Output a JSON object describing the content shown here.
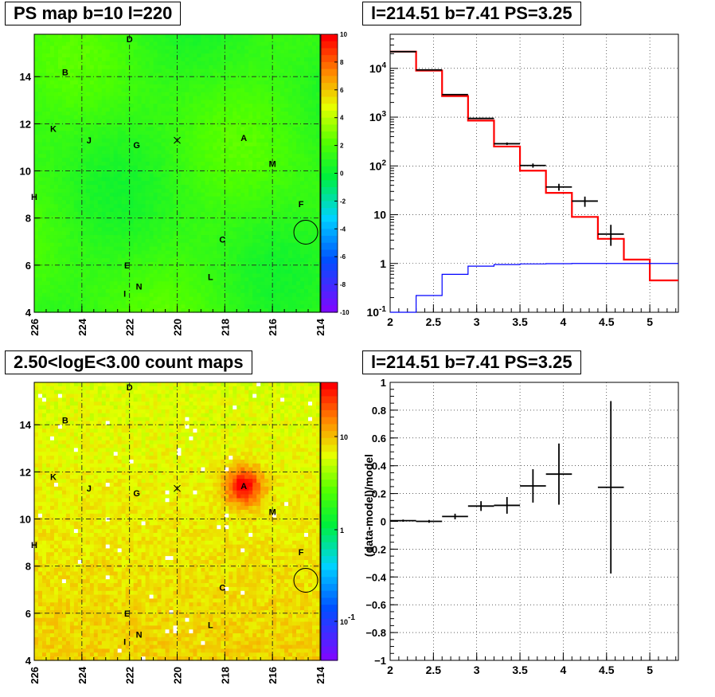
{
  "panels": {
    "top_left_title": "PS map b=10 l=220",
    "top_right_title": "l=214.51 b=7.41 PS=3.25",
    "bottom_left_title": "2.50<logE<3.00 count maps",
    "bottom_right_title": "l=214.51 b=7.41 PS=3.25"
  },
  "colors": {
    "accent_black": "#000000",
    "model_red": "#ff0000",
    "model_blue": "#0000ff"
  },
  "chart_data": [
    {
      "type": "heatmap",
      "title": "PS map b=10 l=220",
      "x_axis": {
        "ticks": [
          "226",
          "224",
          "222",
          "220",
          "218",
          "216",
          "214"
        ],
        "range": [
          226,
          214
        ]
      },
      "y_axis": {
        "ticks": [
          "4",
          "6",
          "8",
          "10",
          "12",
          "14"
        ],
        "range": [
          4,
          15.8
        ]
      },
      "colorbar": {
        "ticks": [
          "-10",
          "-8",
          "-6",
          "-4",
          "-2",
          "0",
          "2",
          "4",
          "6",
          "8",
          "10"
        ],
        "range": [
          -10,
          10
        ]
      },
      "grid": true,
      "source_labels": [
        {
          "name": "D",
          "l": 222.0,
          "b": 15.6
        },
        {
          "name": "B",
          "l": 224.7,
          "b": 14.2
        },
        {
          "name": "K",
          "l": 225.2,
          "b": 11.8
        },
        {
          "name": "J",
          "l": 223.7,
          "b": 11.3
        },
        {
          "name": "G",
          "l": 221.7,
          "b": 11.1
        },
        {
          "name": "A",
          "l": 217.2,
          "b": 11.4
        },
        {
          "name": "M",
          "l": 216.0,
          "b": 10.3
        },
        {
          "name": "H",
          "l": 226.0,
          "b": 8.9
        },
        {
          "name": "F",
          "l": 214.8,
          "b": 8.6
        },
        {
          "name": "C",
          "l": 218.1,
          "b": 7.1
        },
        {
          "name": "E",
          "l": 222.1,
          "b": 6.0
        },
        {
          "name": "L",
          "l": 218.6,
          "b": 5.5
        },
        {
          "name": "N",
          "l": 221.6,
          "b": 5.1
        },
        {
          "name": "I",
          "l": 222.2,
          "b": 4.8
        }
      ],
      "center_mark": {
        "l": 220.0,
        "b": 11.3
      },
      "circle": {
        "l": 214.6,
        "b": 7.4
      }
    },
    {
      "type": "line",
      "title": "l=214.51 b=7.41 PS=3.25",
      "xlim": [
        2,
        5.33
      ],
      "ylim_log": [
        0.1,
        50000
      ],
      "x_ticks": [
        "2",
        "2.5",
        "3",
        "3.5",
        "4",
        "4.5",
        "5"
      ],
      "y_ticks": [
        "10^-1",
        "1",
        "10",
        "10^2",
        "10^3",
        "10^4"
      ],
      "grid": true,
      "series": [
        {
          "style": "step",
          "color": "red",
          "edges": [
            2.0,
            2.3,
            2.6,
            2.9,
            3.2,
            3.5,
            3.8,
            4.1,
            4.4,
            4.7,
            5.0,
            5.33
          ],
          "values": [
            22000,
            9000,
            2700,
            850,
            250,
            80,
            28,
            9,
            3.2,
            1.2,
            0.45
          ]
        },
        {
          "style": "step",
          "color": "blue",
          "edges": [
            2.0,
            2.3,
            2.6,
            2.9,
            3.2,
            3.5,
            3.8,
            4.1,
            4.4,
            4.7,
            5.0,
            5.33
          ],
          "values": [
            0.1,
            0.22,
            0.6,
            0.88,
            0.95,
            0.98,
            0.99,
            1.0,
            1.0,
            1.0,
            1.0
          ]
        },
        {
          "style": "errorbars",
          "color": "black",
          "points": [
            {
              "x": 2.15,
              "xerr": 0.15,
              "y": 22000,
              "yerr": [
                150,
                150
              ]
            },
            {
              "x": 2.45,
              "xerr": 0.15,
              "y": 9300,
              "yerr": [
                100,
                100
              ]
            },
            {
              "x": 2.75,
              "xerr": 0.15,
              "y": 2900,
              "yerr": [
                60,
                60
              ]
            },
            {
              "x": 3.05,
              "xerr": 0.15,
              "y": 940,
              "yerr": [
                30,
                30
              ]
            },
            {
              "x": 3.35,
              "xerr": 0.15,
              "y": 285,
              "yerr": [
                17,
                17
              ]
            },
            {
              "x": 3.65,
              "xerr": 0.15,
              "y": 102,
              "yerr": [
                10,
                10
              ]
            },
            {
              "x": 3.95,
              "xerr": 0.15,
              "y": 37,
              "yerr": [
                6,
                6
              ]
            },
            {
              "x": 4.25,
              "xerr": 0.15,
              "y": 19,
              "yerr": [
                4.5,
                4.5
              ]
            },
            {
              "x": 4.55,
              "xerr": 0.15,
              "y": 4,
              "yerr": [
                1.7,
                2.2
              ]
            }
          ]
        }
      ]
    },
    {
      "type": "heatmap",
      "title": "2.50<logE<3.00 count maps",
      "x_axis": {
        "ticks": [
          "226",
          "224",
          "222",
          "220",
          "218",
          "216",
          "214"
        ],
        "range": [
          226,
          214
        ]
      },
      "y_axis": {
        "ticks": [
          "4",
          "6",
          "8",
          "10",
          "12",
          "14"
        ],
        "range": [
          4,
          15.8
        ]
      },
      "colorbar": {
        "ticks": [
          "10",
          "1",
          "10^-1"
        ],
        "log": true
      },
      "grid": true,
      "hotspot": {
        "l": 217.2,
        "b": 11.4
      },
      "source_labels": [
        {
          "name": "D",
          "l": 222.0,
          "b": 15.6
        },
        {
          "name": "B",
          "l": 224.7,
          "b": 14.2
        },
        {
          "name": "K",
          "l": 225.2,
          "b": 11.8
        },
        {
          "name": "J",
          "l": 223.7,
          "b": 11.3
        },
        {
          "name": "G",
          "l": 221.7,
          "b": 11.1
        },
        {
          "name": "A",
          "l": 217.2,
          "b": 11.4
        },
        {
          "name": "M",
          "l": 216.0,
          "b": 10.3
        },
        {
          "name": "H",
          "l": 226.0,
          "b": 8.9
        },
        {
          "name": "F",
          "l": 214.8,
          "b": 8.6
        },
        {
          "name": "C",
          "l": 218.1,
          "b": 7.1
        },
        {
          "name": "E",
          "l": 222.1,
          "b": 6.0
        },
        {
          "name": "L",
          "l": 218.6,
          "b": 5.5
        },
        {
          "name": "N",
          "l": 221.6,
          "b": 5.1
        },
        {
          "name": "I",
          "l": 222.2,
          "b": 4.8
        }
      ],
      "center_mark": {
        "l": 220.0,
        "b": 11.3
      },
      "circle": {
        "l": 214.6,
        "b": 7.4
      }
    },
    {
      "type": "scatter",
      "title": "l=214.51 b=7.41 PS=3.25",
      "ylabel": "(data-model)/model",
      "xlim": [
        2,
        5.33
      ],
      "ylim": [
        -1,
        1
      ],
      "x_ticks": [
        "2",
        "2.5",
        "3",
        "3.5",
        "4",
        "4.5",
        "5"
      ],
      "y_ticks": [
        "-1",
        "-0.8",
        "-0.6",
        "-0.4",
        "-0.2",
        "0",
        "0.2",
        "0.4",
        "0.6",
        "0.8",
        "1"
      ],
      "grid": true,
      "points": [
        {
          "x": 2.15,
          "xerr": 0.15,
          "y": 0.005,
          "yerr": [
            0.008,
            0.008
          ]
        },
        {
          "x": 2.45,
          "xerr": 0.15,
          "y": 0.0,
          "yerr": [
            0.01,
            0.01
          ]
        },
        {
          "x": 2.75,
          "xerr": 0.15,
          "y": 0.035,
          "yerr": [
            0.02,
            0.02
          ]
        },
        {
          "x": 3.05,
          "xerr": 0.15,
          "y": 0.11,
          "yerr": [
            0.035,
            0.035
          ]
        },
        {
          "x": 3.35,
          "xerr": 0.15,
          "y": 0.115,
          "yerr": [
            0.06,
            0.06
          ]
        },
        {
          "x": 3.65,
          "xerr": 0.15,
          "y": 0.255,
          "yerr": [
            0.12,
            0.12
          ]
        },
        {
          "x": 3.95,
          "xerr": 0.15,
          "y": 0.34,
          "yerr": [
            0.22,
            0.22
          ]
        },
        {
          "x": 4.55,
          "xerr": 0.15,
          "y": 0.245,
          "yerr": [
            0.62,
            0.62
          ]
        }
      ]
    }
  ]
}
